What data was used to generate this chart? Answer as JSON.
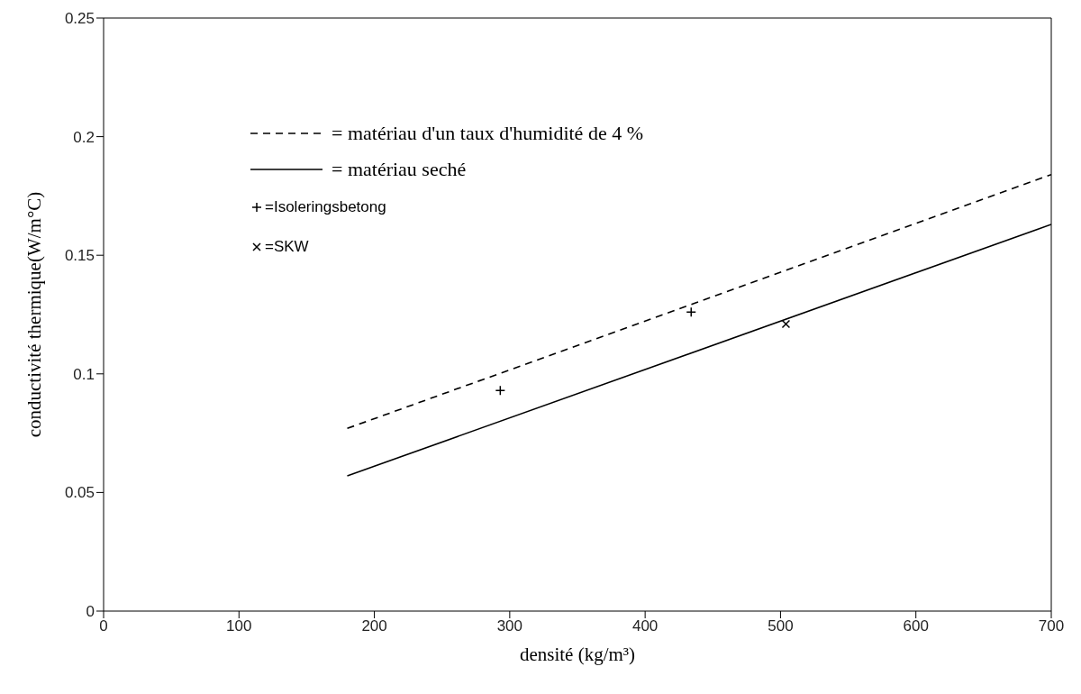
{
  "chart_data": {
    "type": "line",
    "xlabel": "densité (kg/m³)",
    "ylabel": "conductivité thermique(W/m°C)",
    "xlim": [
      0,
      700
    ],
    "xticks": [
      0,
      100,
      200,
      300,
      400,
      500,
      600,
      700
    ],
    "ylim": [
      0,
      0.25
    ],
    "yticks": [
      0,
      0.05,
      0.1,
      0.15,
      0.2,
      0.25
    ],
    "grid": false,
    "legend": "top left",
    "series": [
      {
        "name": "= matériau d'un taux d'humidité de 4 %",
        "color": "#000000",
        "line_style": "dashed",
        "x": [
          180,
          700
        ],
        "values": [
          0.077,
          0.184
        ]
      },
      {
        "name": "= matériau seché",
        "color": "#000000",
        "line_style": "solid",
        "x": [
          180,
          700
        ],
        "values": [
          0.057,
          0.163
        ]
      },
      {
        "name": "=Isoleringsbetong",
        "color": "#000000",
        "type": "scatter",
        "marker": "plus",
        "x": [
          293,
          434
        ],
        "values": [
          0.093,
          0.126
        ]
      },
      {
        "name": "=SKW",
        "color": "#000000",
        "type": "scatter",
        "marker": "cross",
        "x": [
          504
        ],
        "values": [
          0.121
        ]
      }
    ]
  }
}
